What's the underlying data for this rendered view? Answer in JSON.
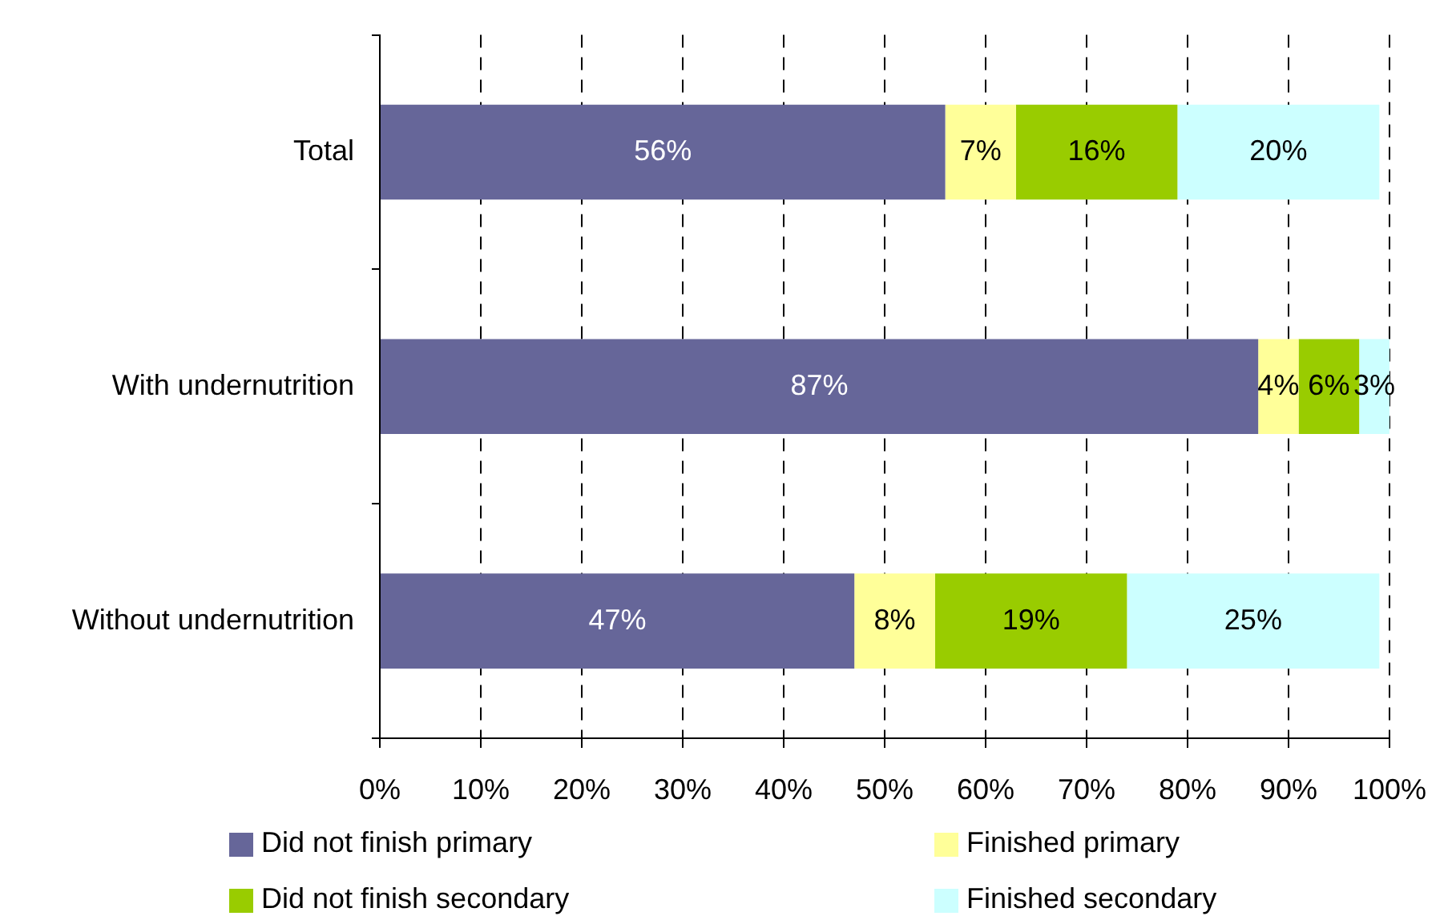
{
  "chart_data": {
    "type": "bar",
    "orientation": "horizontal",
    "stacked": true,
    "categories": [
      "Total",
      "With undernutrition",
      "Without undernutrition"
    ],
    "series": [
      {
        "name": "Did not finish primary",
        "color": "#666699",
        "values": [
          56,
          87,
          47
        ],
        "value_labels": [
          "56%",
          "87%",
          "47%"
        ]
      },
      {
        "name": "Finished primary",
        "color": "#ffff99",
        "values": [
          7,
          4,
          8
        ],
        "value_labels": [
          "7%",
          "4%",
          "8%"
        ]
      },
      {
        "name": "Did not finish secondary",
        "color": "#99cc00",
        "values": [
          16,
          6,
          19
        ],
        "value_labels": [
          "16%",
          "6%",
          "19%"
        ]
      },
      {
        "name": "Finished secondary",
        "color": "#ccffff",
        "values": [
          20,
          3,
          25
        ],
        "value_labels": [
          "20%",
          "3%",
          "25%"
        ]
      }
    ],
    "xlim": [
      0,
      100
    ],
    "xticks": [
      {
        "value": 0,
        "label": "0%"
      },
      {
        "value": 10,
        "label": "10%"
      },
      {
        "value": 20,
        "label": "20%"
      },
      {
        "value": 30,
        "label": "30%"
      },
      {
        "value": 40,
        "label": "40%"
      },
      {
        "value": 50,
        "label": "50%"
      },
      {
        "value": 60,
        "label": "60%"
      },
      {
        "value": 70,
        "label": "70%"
      },
      {
        "value": 80,
        "label": "80%"
      },
      {
        "value": 90,
        "label": "90%"
      },
      {
        "value": 100,
        "label": "100%"
      }
    ],
    "grid": "x",
    "legend": "bottom"
  }
}
